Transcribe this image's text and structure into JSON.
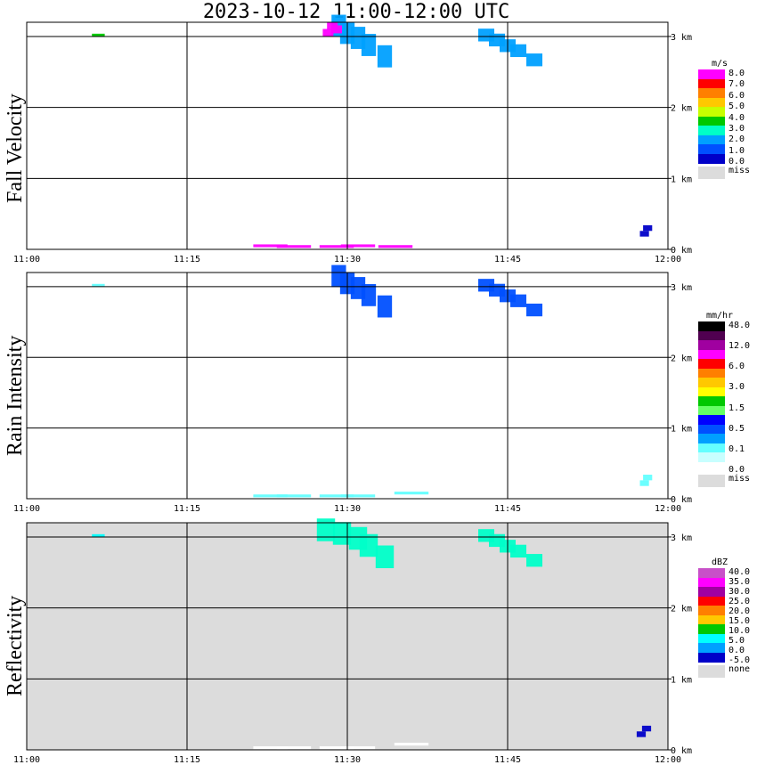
{
  "title": "2023-10-12   11:00-12:00 UTC",
  "chart_data": [
    {
      "type": "heatmap",
      "name": "fall-velocity",
      "ylabel": "Fall Velocity",
      "x_ticks": [
        "11:00",
        "11:15",
        "11:30",
        "11:45",
        "12:00"
      ],
      "y_ticks": [
        "0 km",
        "1 km",
        "2 km",
        "3 km"
      ],
      "xlim": [
        0,
        60
      ],
      "ylim": [
        0,
        3.2
      ],
      "background": "#ffffff",
      "legend": {
        "unit": "m/s",
        "labels": [
          "8.0",
          "7.0",
          "6.0",
          "5.0",
          "4.0",
          "3.0",
          "2.0",
          "1.0",
          "0.0",
          "miss"
        ],
        "colors": [
          "#ff00ff",
          "#ff0000",
          "#ff7f00",
          "#ffc800",
          "#c8ff00",
          "#00c800",
          "#00ffc8",
          "#00a0ff",
          "#0050ff",
          "#0000c8"
        ],
        "miss_color": "#dcdcdc"
      },
      "regions": [
        {
          "t": [
            29.2,
            33.5
          ],
          "h": [
            2.4,
            3.18
          ],
          "color": "#00a0ff",
          "points": [
            [
              29.2,
              3.15
            ],
            [
              30.0,
              3.05
            ],
            [
              31.0,
              2.98
            ],
            [
              32.0,
              2.88
            ],
            [
              33.5,
              2.72
            ]
          ]
        },
        {
          "t": [
            28.0,
            29.5
          ],
          "h": [
            2.9,
            3.18
          ],
          "color": "#ff00ff",
          "points": [
            [
              28.2,
              3.05
            ],
            [
              28.6,
              3.15
            ],
            [
              29.0,
              3.1
            ]
          ]
        },
        {
          "t": [
            43.0,
            48.0
          ],
          "h": [
            2.6,
            3.05
          ],
          "color": "#00a0ff",
          "points": [
            [
              43.0,
              3.02
            ],
            [
              44.0,
              2.95
            ],
            [
              45.0,
              2.87
            ],
            [
              46.0,
              2.8
            ],
            [
              47.5,
              2.67
            ]
          ]
        },
        {
          "t": [
            6.5,
            7.2
          ],
          "h": [
            3.0,
            3.05
          ],
          "color": "#00c800",
          "points": [
            [
              6.7,
              3.02
            ]
          ]
        },
        {
          "t": [
            57.5,
            58.2
          ],
          "h": [
            0.15,
            0.35
          ],
          "color": "#0000c8",
          "points": [
            [
              57.8,
              0.22
            ],
            [
              58.1,
              0.3
            ]
          ]
        },
        {
          "t": [
            22.5,
            36.0
          ],
          "h": [
            0.0,
            0.1
          ],
          "color": "#ff00ff",
          "points": [
            [
              22.8,
              0.05
            ],
            [
              25.0,
              0.04
            ],
            [
              29.0,
              0.04
            ],
            [
              31.0,
              0.05
            ],
            [
              34.5,
              0.04
            ]
          ]
        }
      ]
    },
    {
      "type": "heatmap",
      "name": "rain-intensity",
      "ylabel": "Rain Intensity",
      "x_ticks": [
        "11:00",
        "11:15",
        "11:30",
        "11:45",
        "12:00"
      ],
      "y_ticks": [
        "0 km",
        "1 km",
        "2 km",
        "3 km"
      ],
      "xlim": [
        0,
        60
      ],
      "ylim": [
        0,
        3.2
      ],
      "background": "#ffffff",
      "legend": {
        "unit": "mm/hr",
        "labels": [
          "48.0",
          "12.0",
          "6.0",
          "3.0",
          "1.5",
          "0.5",
          "0.1",
          "0.0",
          "miss"
        ],
        "colors": [
          "#000000",
          "#500050",
          "#a000a0",
          "#ff00ff",
          "#ff0000",
          "#ff7f00",
          "#ffc800",
          "#ffff00",
          "#00c800",
          "#64ff64",
          "#0000ff",
          "#0050ff",
          "#00a0ff",
          "#64ffff",
          "#c8ffff",
          "#ffffff"
        ],
        "miss_color": "#dcdcdc"
      },
      "regions": [
        {
          "t": [
            29.2,
            33.5
          ],
          "h": [
            2.4,
            3.18
          ],
          "color": "#0050ff",
          "points": [
            [
              29.2,
              3.15
            ],
            [
              30.0,
              3.05
            ],
            [
              31.0,
              2.98
            ],
            [
              32.0,
              2.88
            ],
            [
              33.5,
              2.72
            ]
          ]
        },
        {
          "t": [
            43.0,
            48.0
          ],
          "h": [
            2.6,
            3.05
          ],
          "color": "#0050ff",
          "points": [
            [
              43.0,
              3.02
            ],
            [
              44.0,
              2.95
            ],
            [
              45.0,
              2.87
            ],
            [
              46.0,
              2.8
            ],
            [
              47.5,
              2.67
            ]
          ]
        },
        {
          "t": [
            6.5,
            7.2
          ],
          "h": [
            3.0,
            3.05
          ],
          "color": "#64ffff",
          "points": [
            [
              6.7,
              3.02
            ]
          ]
        },
        {
          "t": [
            57.5,
            58.2
          ],
          "h": [
            0.15,
            0.35
          ],
          "color": "#64ffff",
          "points": [
            [
              57.8,
              0.22
            ],
            [
              58.1,
              0.3
            ]
          ]
        },
        {
          "t": [
            22.5,
            36.0
          ],
          "h": [
            0.0,
            0.1
          ],
          "color": "#64ffff",
          "points": [
            [
              22.8,
              0.04
            ],
            [
              25.0,
              0.04
            ],
            [
              29.0,
              0.04
            ],
            [
              31.0,
              0.04
            ],
            [
              36.0,
              0.08
            ]
          ]
        }
      ]
    },
    {
      "type": "heatmap",
      "name": "reflectivity",
      "ylabel": "Reflectivity",
      "x_ticks": [
        "11:00",
        "11:15",
        "11:30",
        "11:45",
        "12:00"
      ],
      "y_ticks": [
        "0 km",
        "1 km",
        "2 km",
        "3 km"
      ],
      "xlim": [
        0,
        60
      ],
      "ylim": [
        0,
        3.2
      ],
      "background": "#dcdcdc",
      "legend": {
        "unit": "dBZ",
        "labels": [
          "40.0",
          "35.0",
          "30.0",
          "25.0",
          "20.0",
          "15.0",
          "10.0",
          "5.0",
          "0.0",
          "-5.0",
          "none"
        ],
        "colors": [
          "#c850c8",
          "#ff00ff",
          "#a000a0",
          "#ff0000",
          "#ff7f00",
          "#ffc800",
          "#00c800",
          "#00ffff",
          "#00a0ff",
          "#0000c8"
        ],
        "miss_color": "#dcdcdc"
      },
      "regions": [
        {
          "t": [
            27.5,
            33.5
          ],
          "h": [
            2.4,
            3.2
          ],
          "color": "#00ffc8",
          "points": [
            [
              28.0,
              3.1
            ],
            [
              29.5,
              3.05
            ],
            [
              31.0,
              2.98
            ],
            [
              32.0,
              2.88
            ],
            [
              33.5,
              2.72
            ]
          ]
        },
        {
          "t": [
            43.0,
            48.0
          ],
          "h": [
            2.6,
            3.05
          ],
          "color": "#00ffc8",
          "points": [
            [
              43.0,
              3.02
            ],
            [
              44.0,
              2.95
            ],
            [
              45.0,
              2.87
            ],
            [
              46.0,
              2.8
            ],
            [
              47.5,
              2.67
            ]
          ]
        },
        {
          "t": [
            6.5,
            7.2
          ],
          "h": [
            3.0,
            3.05
          ],
          "color": "#00ffff",
          "points": [
            [
              6.7,
              3.02
            ]
          ]
        },
        {
          "t": [
            57.5,
            58.2
          ],
          "h": [
            0.15,
            0.35
          ],
          "color": "#0000c8",
          "points": [
            [
              57.5,
              0.22
            ],
            [
              58.0,
              0.3
            ]
          ]
        },
        {
          "t": [
            22.5,
            36.0
          ],
          "h": [
            0.0,
            0.1
          ],
          "color": "#ffffff",
          "points": [
            [
              22.8,
              0.03
            ],
            [
              25.0,
              0.03
            ],
            [
              29.0,
              0.03
            ],
            [
              31.0,
              0.03
            ],
            [
              36.0,
              0.08
            ]
          ]
        }
      ]
    }
  ]
}
